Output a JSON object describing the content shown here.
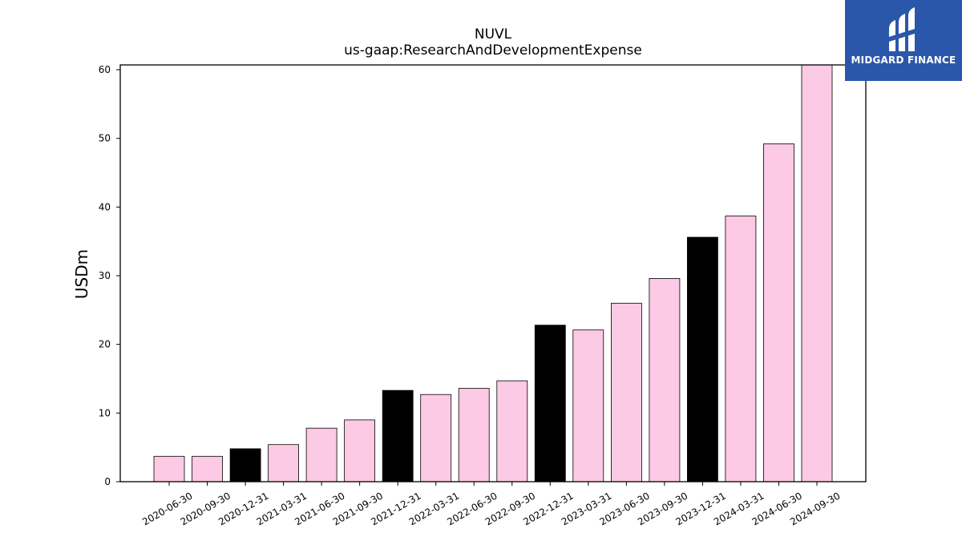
{
  "chart_data": {
    "type": "bar",
    "title": "NUVL",
    "subtitle": "us-gaap:ResearchAndDevelopmentExpense",
    "xlabel": "",
    "ylabel": "USDm",
    "ylim": [
      0,
      60.7
    ],
    "yticks": [
      0,
      10,
      20,
      30,
      40,
      50,
      60
    ],
    "grid": false,
    "categories": [
      "2020-06-30",
      "2020-09-30",
      "2020-12-31",
      "2021-03-31",
      "2021-06-30",
      "2021-09-30",
      "2021-12-31",
      "2022-03-31",
      "2022-06-30",
      "2022-09-30",
      "2022-12-31",
      "2023-03-31",
      "2023-06-30",
      "2023-09-30",
      "2023-12-31",
      "2024-03-31",
      "2024-06-30",
      "2024-09-30"
    ],
    "values": [
      3.7,
      3.7,
      4.8,
      5.4,
      7.8,
      9.0,
      13.3,
      12.7,
      13.6,
      14.7,
      22.8,
      22.1,
      26.0,
      29.6,
      35.6,
      38.7,
      49.2,
      60.7
    ],
    "colors": {
      "quarter": "#fccae4",
      "year_end": "#000000",
      "edge": "#000000"
    }
  },
  "logo": {
    "text": "MIDGARD FINANCE",
    "icon": "midgard-logo-icon",
    "background": "#2b57aa"
  }
}
